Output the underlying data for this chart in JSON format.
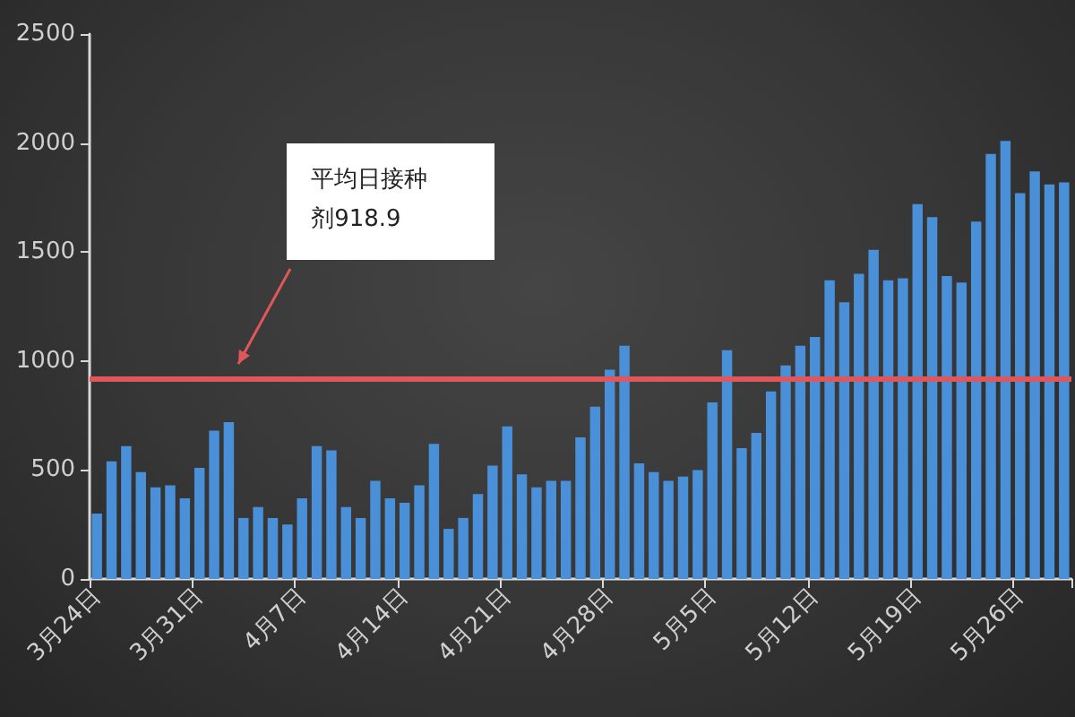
{
  "chart_data": {
    "type": "bar",
    "categories": [
      "3月24日",
      null,
      null,
      null,
      null,
      null,
      null,
      "3月31日",
      null,
      null,
      null,
      null,
      null,
      null,
      "4月7日",
      null,
      null,
      null,
      null,
      null,
      null,
      "4月14日",
      null,
      null,
      null,
      null,
      null,
      null,
      "4月21日",
      null,
      null,
      null,
      null,
      null,
      null,
      "4月28日",
      null,
      null,
      null,
      null,
      null,
      null,
      "5月5日",
      null,
      null,
      null,
      null,
      null,
      null,
      "5月12日",
      null,
      null,
      null,
      null,
      null,
      null,
      "5月19日",
      null,
      null,
      null,
      null,
      null,
      null,
      "5月26日",
      null,
      null,
      null
    ],
    "values": [
      300,
      540,
      610,
      490,
      420,
      430,
      370,
      510,
      680,
      720,
      280,
      330,
      280,
      250,
      370,
      610,
      590,
      330,
      280,
      450,
      370,
      350,
      430,
      620,
      230,
      280,
      390,
      520,
      700,
      480,
      420,
      450,
      450,
      650,
      790,
      960,
      1070,
      530,
      490,
      450,
      470,
      500,
      810,
      1050,
      600,
      670,
      860,
      980,
      1070,
      1110,
      1370,
      1270,
      1400,
      1510,
      1370,
      1380,
      1720,
      1660,
      1390,
      1360,
      1640,
      1950,
      2010,
      1770,
      1870,
      1810,
      1820
    ],
    "color": "#4a90d9",
    "ylim": [
      0,
      2500
    ],
    "yticks": [
      0,
      500,
      1000,
      1500,
      2000,
      2500
    ],
    "ref_lines": [
      {
        "axis": "y",
        "value": 918.9,
        "color": "#e0575b"
      }
    ],
    "annotations": [
      "平均日接种剂918.9"
    ]
  }
}
